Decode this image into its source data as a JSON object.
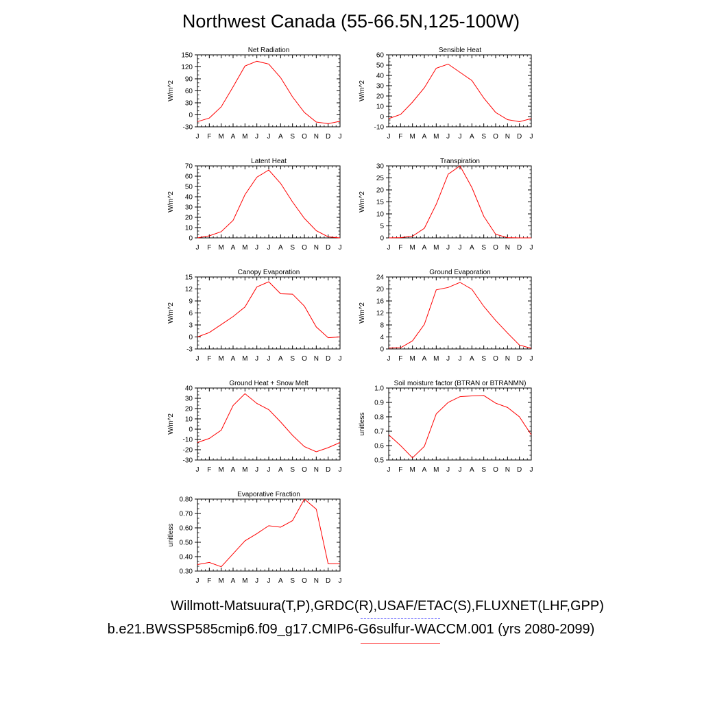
{
  "page": {
    "title": "Northwest Canada (55-66.5N,125-100W)",
    "footer_line1": "Willmott-Matsuura(T,P),GRDC(R),USAF/ETAC(S),FLUXNET(LHF,GPP)",
    "footer_line2": "b.e21.BWSSP585cmip6.f09_g17.CMIP6-G6sulfur-WACCM.001 (yrs 2080-2099)",
    "line_color": "#ff0000",
    "obs_legend_color": "#6a6aff",
    "model_legend_color": "#ff6a6a"
  },
  "chart_data": [
    {
      "type": "line",
      "title": "Net Radiation",
      "ylabel": "W/m^2",
      "x": [
        "J",
        "F",
        "M",
        "A",
        "M",
        "J",
        "J",
        "A",
        "S",
        "O",
        "N",
        "D",
        "J"
      ],
      "ylim": [
        -30,
        150
      ],
      "yticks": [
        -30,
        0,
        30,
        60,
        90,
        120,
        150
      ],
      "ytick_labels": [
        "-30",
        "0",
        "30",
        "60",
        "90",
        "120",
        "150"
      ],
      "series": [
        {
          "values": [
            -17,
            -8,
            20,
            70,
            122,
            134,
            127,
            93,
            45,
            6,
            -18,
            -22,
            -16
          ]
        }
      ]
    },
    {
      "type": "line",
      "title": "Sensible Heat",
      "ylabel": "W/m^2",
      "x": [
        "J",
        "F",
        "M",
        "A",
        "M",
        "J",
        "J",
        "A",
        "S",
        "O",
        "N",
        "D",
        "J"
      ],
      "ylim": [
        -10,
        60
      ],
      "yticks": [
        -10,
        0,
        10,
        20,
        30,
        40,
        50,
        60
      ],
      "ytick_labels": [
        "-10",
        "0",
        "10",
        "20",
        "30",
        "40",
        "50",
        "60"
      ],
      "series": [
        {
          "values": [
            -2,
            2,
            14,
            28,
            47,
            51,
            43,
            35,
            18,
            4,
            -3,
            -5,
            -2
          ]
        }
      ]
    },
    {
      "type": "line",
      "title": "Latent Heat",
      "ylabel": "W/m^2",
      "x": [
        "J",
        "F",
        "M",
        "A",
        "M",
        "J",
        "J",
        "A",
        "S",
        "O",
        "N",
        "D",
        "J"
      ],
      "ylim": [
        0,
        70
      ],
      "yticks": [
        0,
        10,
        20,
        30,
        40,
        50,
        60,
        70
      ],
      "ytick_labels": [
        "0",
        "10",
        "20",
        "30",
        "40",
        "50",
        "60",
        "70"
      ],
      "series": [
        {
          "values": [
            0,
            2,
            6,
            17,
            42,
            59,
            66,
            53,
            35,
            19,
            7,
            1,
            0
          ]
        }
      ]
    },
    {
      "type": "line",
      "title": "Transpiration",
      "ylabel": "W/m^2",
      "x": [
        "J",
        "F",
        "M",
        "A",
        "M",
        "J",
        "J",
        "A",
        "S",
        "O",
        "N",
        "D",
        "J"
      ],
      "ylim": [
        0,
        30
      ],
      "yticks": [
        0,
        5,
        10,
        15,
        20,
        25,
        30
      ],
      "ytick_labels": [
        "0",
        "5",
        "10",
        "15",
        "20",
        "25",
        "30"
      ],
      "series": [
        {
          "values": [
            0,
            0.1,
            0.7,
            4,
            14,
            26.5,
            30,
            21,
            9,
            1.5,
            0.1,
            0,
            0
          ]
        }
      ]
    },
    {
      "type": "line",
      "title": "Canopy Evaporation",
      "ylabel": "W/m^2",
      "x": [
        "J",
        "F",
        "M",
        "A",
        "M",
        "J",
        "J",
        "A",
        "S",
        "O",
        "N",
        "D",
        "J"
      ],
      "ylim": [
        -3,
        15
      ],
      "yticks": [
        -3,
        0,
        3,
        6,
        9,
        12,
        15
      ],
      "ytick_labels": [
        "-3",
        "0",
        "3",
        "6",
        "9",
        "12",
        "15"
      ],
      "series": [
        {
          "values": [
            0,
            1.1,
            3.1,
            5.1,
            7.5,
            12.5,
            13.8,
            10.8,
            10.7,
            7.7,
            2.5,
            -0.2,
            0
          ]
        }
      ]
    },
    {
      "type": "line",
      "title": "Ground Evaporation",
      "ylabel": "W/m^2",
      "x": [
        "J",
        "F",
        "M",
        "A",
        "M",
        "J",
        "J",
        "A",
        "S",
        "O",
        "N",
        "D",
        "J"
      ],
      "ylim": [
        0,
        24
      ],
      "yticks": [
        0,
        4,
        8,
        12,
        16,
        20,
        24
      ],
      "ytick_labels": [
        "0",
        "4",
        "8",
        "12",
        "16",
        "20",
        "24"
      ],
      "series": [
        {
          "values": [
            0.3,
            0.4,
            2.7,
            8.2,
            19.7,
            20.5,
            22.2,
            19.9,
            14.2,
            9.5,
            5.3,
            1.3,
            0.2
          ]
        }
      ]
    },
    {
      "type": "line",
      "title": "Ground Heat + Snow Melt",
      "ylabel": "W/m^2",
      "x": [
        "J",
        "F",
        "M",
        "A",
        "M",
        "J",
        "J",
        "A",
        "S",
        "O",
        "N",
        "D",
        "J"
      ],
      "ylim": [
        -30,
        40
      ],
      "yticks": [
        -30,
        -20,
        -10,
        0,
        10,
        20,
        30,
        40
      ],
      "ytick_labels": [
        "-30",
        "-20",
        "-10",
        "0",
        "10",
        "20",
        "30",
        "40"
      ],
      "series": [
        {
          "values": [
            -13,
            -9,
            -1,
            23,
            34.5,
            25,
            19,
            7,
            -6,
            -17,
            -22,
            -18,
            -13
          ]
        }
      ]
    },
    {
      "type": "line",
      "title": "Soil moisture factor (BTRAN or BTRANMN)",
      "ylabel": "unitless",
      "x": [
        "J",
        "F",
        "M",
        "A",
        "M",
        "J",
        "J",
        "A",
        "S",
        "O",
        "N",
        "D",
        "J"
      ],
      "ylim": [
        0.5,
        1.0
      ],
      "yticks": [
        0.5,
        0.6,
        0.7,
        0.8,
        0.9,
        1.0
      ],
      "ytick_labels": [
        "0.5",
        "0.6",
        "0.7",
        "0.8",
        "0.9",
        "1.0"
      ],
      "series": [
        {
          "values": [
            0.675,
            0.6,
            0.515,
            0.595,
            0.82,
            0.9,
            0.94,
            0.945,
            0.948,
            0.895,
            0.865,
            0.8,
            0.675
          ]
        }
      ]
    },
    {
      "type": "line",
      "title": "Evaporative Fraction",
      "ylabel": "unitless",
      "x": [
        "J",
        "F",
        "M",
        "A",
        "M",
        "J",
        "J",
        "A",
        "S",
        "O",
        "N",
        "D",
        "J"
      ],
      "ylim": [
        0.3,
        0.8
      ],
      "yticks": [
        0.3,
        0.4,
        0.5,
        0.6,
        0.7,
        0.8
      ],
      "ytick_labels": [
        "0.30",
        "0.40",
        "0.50",
        "0.60",
        "0.70",
        "0.80"
      ],
      "series": [
        {
          "values": [
            0.345,
            0.36,
            0.33,
            0.42,
            0.51,
            0.56,
            0.615,
            0.605,
            0.65,
            0.8,
            0.73,
            0.35,
            0.35
          ]
        }
      ]
    }
  ]
}
